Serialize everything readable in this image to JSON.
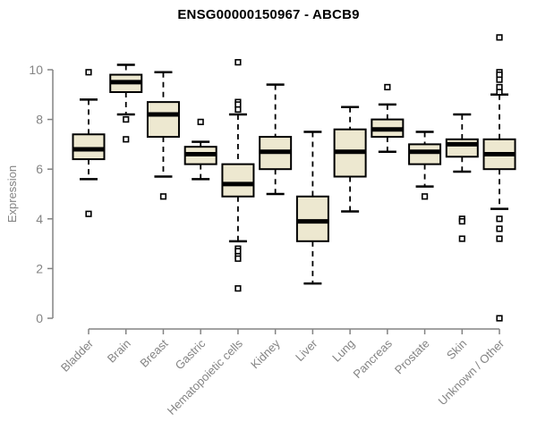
{
  "title": "ENSG00000150967 - ABCB9",
  "chart_data": {
    "type": "boxplot",
    "title": "ENSG00000150967 - ABCB9",
    "xlabel": "",
    "ylabel": "Expression",
    "yticks": [
      0,
      2,
      4,
      6,
      8,
      10
    ],
    "ylim": [
      0,
      10
    ],
    "grid": false,
    "legend": "none",
    "box_fill": "#EDE8D0",
    "stroke_color": "#000000",
    "axis_color": "#848484",
    "categories": [
      "Bladder",
      "Brain",
      "Breast",
      "Gastric",
      "Hematopoietic cells",
      "Kidney",
      "Liver",
      "Lung",
      "Pancreas",
      "Prostate",
      "Skin",
      "Unknown / Other"
    ],
    "series": [
      {
        "name": "Bladder",
        "whisker_low": 5.6,
        "q1": 6.4,
        "median": 6.8,
        "q3": 7.4,
        "whisker_high": 8.8,
        "outliers": [
          9.9,
          4.2
        ]
      },
      {
        "name": "Brain",
        "whisker_low": 8.2,
        "q1": 9.1,
        "median": 9.5,
        "q3": 9.8,
        "whisker_high": 10.2,
        "outliers": [
          8.0,
          7.2
        ]
      },
      {
        "name": "Breast",
        "whisker_low": 5.7,
        "q1": 7.3,
        "median": 8.2,
        "q3": 8.7,
        "whisker_high": 9.9,
        "outliers": [
          4.9
        ]
      },
      {
        "name": "Gastric",
        "whisker_low": 5.6,
        "q1": 6.2,
        "median": 6.6,
        "q3": 6.9,
        "whisker_high": 7.1,
        "outliers": [
          7.9
        ]
      },
      {
        "name": "Hematopoietic cells",
        "whisker_low": 3.1,
        "q1": 4.9,
        "median": 5.4,
        "q3": 6.2,
        "whisker_high": 8.2,
        "outliers": [
          10.3,
          8.7,
          8.6,
          8.4,
          2.8,
          2.7,
          2.5,
          2.4,
          1.2
        ]
      },
      {
        "name": "Kidney",
        "whisker_low": 5.0,
        "q1": 6.0,
        "median": 6.7,
        "q3": 7.3,
        "whisker_high": 9.4,
        "outliers": []
      },
      {
        "name": "Liver",
        "whisker_low": 1.4,
        "q1": 3.1,
        "median": 3.9,
        "q3": 4.9,
        "whisker_high": 7.5,
        "outliers": []
      },
      {
        "name": "Lung",
        "whisker_low": 4.3,
        "q1": 5.7,
        "median": 6.7,
        "q3": 7.6,
        "whisker_high": 8.5,
        "outliers": []
      },
      {
        "name": "Pancreas",
        "whisker_low": 6.7,
        "q1": 7.3,
        "median": 7.6,
        "q3": 8.0,
        "whisker_high": 8.6,
        "outliers": [
          9.3
        ]
      },
      {
        "name": "Prostate",
        "whisker_low": 5.3,
        "q1": 6.2,
        "median": 6.7,
        "q3": 7.0,
        "whisker_high": 7.5,
        "outliers": [
          4.9
        ]
      },
      {
        "name": "Skin",
        "whisker_low": 5.9,
        "q1": 6.5,
        "median": 7.0,
        "q3": 7.2,
        "whisker_high": 8.2,
        "outliers": [
          4.0,
          3.9,
          3.2
        ]
      },
      {
        "name": "Unknown / Other",
        "whisker_low": 4.4,
        "q1": 6.0,
        "median": 6.6,
        "q3": 7.2,
        "whisker_high": 9.0,
        "outliers": [
          11.3,
          9.9,
          9.8,
          9.6,
          9.3,
          9.1,
          4.0,
          3.6,
          3.2,
          0.0
        ]
      }
    ]
  }
}
